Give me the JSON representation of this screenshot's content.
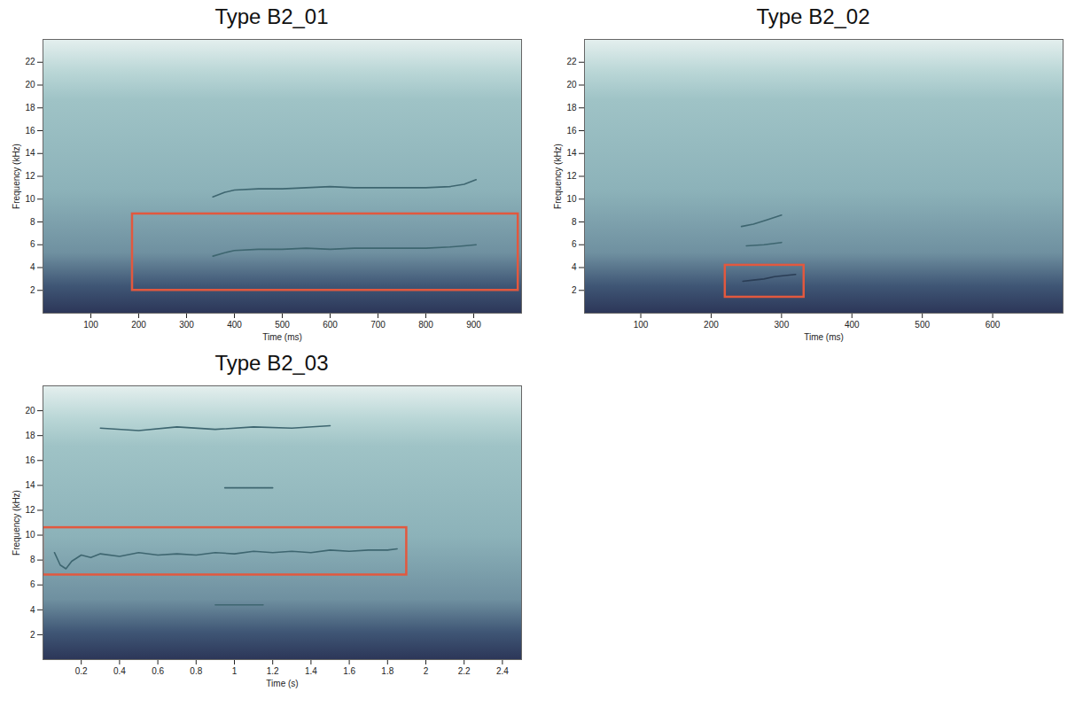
{
  "chart_data": [
    {
      "type": "line",
      "title": "Type B2_01",
      "x_label": "Time (ms)",
      "y_label": "Frequency (kHz)",
      "xlim": [
        0,
        1000
      ],
      "ylim": [
        0,
        24
      ],
      "xticks": [
        100,
        200,
        300,
        400,
        500,
        600,
        700,
        800,
        900
      ],
      "yticks": [
        2,
        4,
        6,
        8,
        10,
        12,
        14,
        16,
        18,
        20,
        22
      ],
      "series": [
        {
          "color": "#3e6670",
          "x": [
            355,
            380,
            400,
            450,
            500,
            550,
            600,
            650,
            700,
            750,
            800,
            850,
            880,
            905
          ],
          "values": [
            5.0,
            5.3,
            5.5,
            5.6,
            5.6,
            5.7,
            5.6,
            5.7,
            5.7,
            5.7,
            5.7,
            5.8,
            5.9,
            6.0
          ]
        },
        {
          "color": "#3e6670",
          "x": [
            355,
            380,
            400,
            450,
            500,
            550,
            600,
            650,
            700,
            750,
            800,
            850,
            880,
            905
          ],
          "values": [
            10.2,
            10.6,
            10.8,
            10.9,
            10.9,
            11.0,
            11.1,
            11.0,
            11.0,
            11.0,
            11.0,
            11.1,
            11.3,
            11.7
          ]
        }
      ],
      "highlight_box": {
        "x": [
          187,
          993
        ],
        "y": [
          2,
          8.7
        ],
        "color": "#e2583e"
      }
    },
    {
      "type": "line",
      "title": "Type B2_02",
      "x_label": "Time (ms)",
      "y_label": "Frequency (kHz)",
      "xlim": [
        20,
        700
      ],
      "ylim": [
        0,
        24
      ],
      "xticks": [
        100,
        200,
        300,
        400,
        500,
        600
      ],
      "yticks": [
        2,
        4,
        6,
        8,
        10,
        12,
        14,
        16,
        18,
        20,
        22
      ],
      "series": [
        {
          "color": "#2a3d55",
          "x": [
            245,
            260,
            275,
            290,
            305,
            320
          ],
          "values": [
            2.8,
            2.9,
            3.0,
            3.2,
            3.3,
            3.4
          ]
        },
        {
          "color": "#3e6670",
          "x": [
            250,
            275,
            300
          ],
          "values": [
            5.9,
            6.0,
            6.2
          ]
        },
        {
          "color": "#3e6670",
          "x": [
            243,
            260,
            280,
            300
          ],
          "values": [
            7.6,
            7.8,
            8.2,
            8.6
          ]
        }
      ],
      "highlight_box": {
        "x": [
          220,
          332
        ],
        "y": [
          1.4,
          4.2
        ],
        "color": "#e2583e"
      }
    },
    {
      "type": "line",
      "title": "Type B2_03",
      "x_label": "Time (s)",
      "y_label": "Frequency (kHz)",
      "xlim": [
        0,
        2.5
      ],
      "ylim": [
        0,
        22
      ],
      "xticks": [
        0.2,
        0.4,
        0.6,
        0.8,
        1,
        1.2,
        1.4,
        1.6,
        1.8,
        2,
        2.2,
        2.4
      ],
      "yticks": [
        2,
        4,
        6,
        8,
        10,
        12,
        14,
        16,
        18,
        20
      ],
      "series": [
        {
          "color": "#3e6670",
          "x": [
            0.06,
            0.09,
            0.12,
            0.15,
            0.2,
            0.25,
            0.3,
            0.4,
            0.5,
            0.6,
            0.7,
            0.8,
            0.9,
            1.0,
            1.1,
            1.2,
            1.3,
            1.4,
            1.5,
            1.6,
            1.7,
            1.8,
            1.85
          ],
          "values": [
            8.6,
            7.6,
            7.3,
            7.9,
            8.4,
            8.2,
            8.5,
            8.3,
            8.6,
            8.4,
            8.5,
            8.4,
            8.6,
            8.5,
            8.7,
            8.6,
            8.7,
            8.6,
            8.8,
            8.7,
            8.8,
            8.8,
            8.9
          ]
        },
        {
          "color": "#3e6670",
          "x": [
            0.3,
            0.5,
            0.7,
            0.9,
            1.1,
            1.3,
            1.5
          ],
          "values": [
            18.6,
            18.4,
            18.7,
            18.5,
            18.7,
            18.6,
            18.8
          ]
        },
        {
          "color": "#3e6670",
          "x": [
            0.95,
            1.2
          ],
          "values": [
            13.8,
            13.8
          ]
        },
        {
          "color": "#3e6670",
          "x": [
            0.9,
            1.15
          ],
          "values": [
            4.4,
            4.4
          ]
        }
      ],
      "highlight_box": {
        "x": [
          0,
          1.9
        ],
        "y": [
          6.8,
          10.6
        ],
        "color": "#e2583e"
      }
    }
  ]
}
